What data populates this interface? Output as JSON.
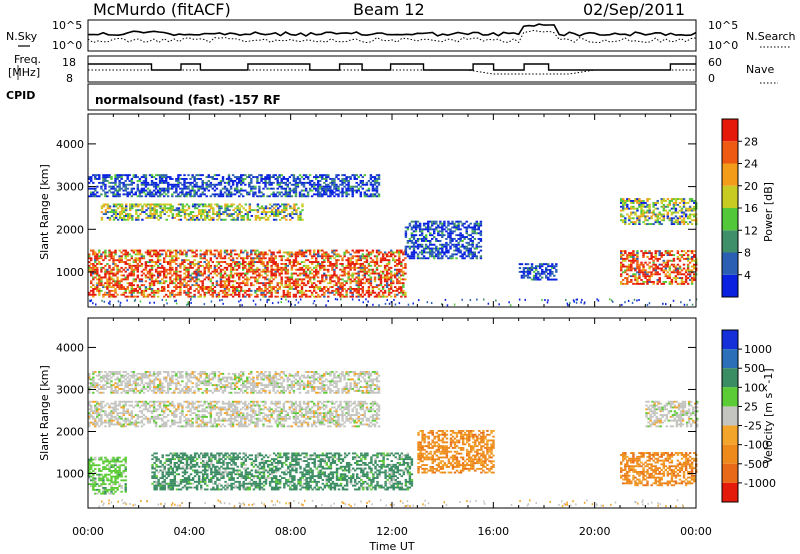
{
  "header": {
    "station": "McMurdo (fitACF)",
    "beam": "Beam 12",
    "date": "02/Sep/2011"
  },
  "noise_panel": {
    "left_label": "N.Sky",
    "right_label": "N.Search",
    "left_ticks": [
      "10^5",
      "10^0"
    ],
    "right_ticks": [
      "10^5",
      "10^0"
    ]
  },
  "freq_panel": {
    "left_label_1": "Freq.",
    "left_label_2": "[MHz]",
    "right_label": "Nave",
    "left_ticks": [
      "18",
      "8"
    ],
    "right_ticks": [
      "60",
      "0"
    ]
  },
  "cpid": {
    "label": "CPID",
    "value": "normalsound (fast) -157 RF"
  },
  "colors": {
    "power_scale": [
      "#0a22e0",
      "#2a5fb4",
      "#3f8f6a",
      "#52c73a",
      "#c8cc22",
      "#f29c1a",
      "#ee5a12",
      "#e61a0a"
    ],
    "velocity_scale": [
      "#1530d8",
      "#2a6fb8",
      "#3a8c63",
      "#5ccc36",
      "#c4c4c0",
      "#f3a42a",
      "#ee8a1c",
      "#e86a18",
      "#e41a0a"
    ]
  },
  "chart_data": [
    {
      "type": "heatmap",
      "title": "Power",
      "ylabel": "Slant Range [km]",
      "xlabel": "",
      "x_ticks": [
        "00:00",
        "04:00",
        "08:00",
        "12:00",
        "16:00",
        "20:00",
        "00:00"
      ],
      "y_ticks": [
        "1000",
        "2000",
        "3000",
        "4000"
      ],
      "ylim": [
        180,
        4700
      ],
      "xlim_hours": [
        0,
        24
      ],
      "colorbar": {
        "label": "Power [dB]",
        "ticks": [
          "4",
          "8",
          "12",
          "16",
          "20",
          "24",
          "28"
        ],
        "range": [
          0,
          32
        ]
      },
      "scatter_bands": [
        {
          "hours": [
            0.0,
            12.5
          ],
          "range_km": [
            400,
            1500
          ],
          "level": "high"
        },
        {
          "hours": [
            0.5,
            8.5
          ],
          "range_km": [
            2200,
            2600
          ],
          "level": "medium"
        },
        {
          "hours": [
            0.0,
            11.5
          ],
          "range_km": [
            2750,
            3250
          ],
          "level": "low"
        },
        {
          "hours": [
            12.5,
            15.5
          ],
          "range_km": [
            1300,
            2200
          ],
          "level": "low"
        },
        {
          "hours": [
            17.0,
            18.5
          ],
          "range_km": [
            800,
            1200
          ],
          "level": "low"
        },
        {
          "hours": [
            21.0,
            24.0
          ],
          "range_km": [
            700,
            1500
          ],
          "level": "high"
        },
        {
          "hours": [
            21.0,
            24.0
          ],
          "range_km": [
            2100,
            2700
          ],
          "level": "medium"
        }
      ]
    },
    {
      "type": "heatmap",
      "title": "Velocity",
      "ylabel": "Slant Range [km]",
      "xlabel": "Time UT",
      "x_ticks": [
        "00:00",
        "04:00",
        "08:00",
        "12:00",
        "16:00",
        "20:00",
        "00:00"
      ],
      "y_ticks": [
        "1000",
        "2000",
        "3000",
        "4000"
      ],
      "ylim": [
        180,
        4700
      ],
      "xlim_hours": [
        0,
        24
      ],
      "colorbar": {
        "label": "Velocity [m s^-1]",
        "ticks": [
          "1000",
          "500",
          "100",
          "25",
          "-25",
          "-100",
          "-500",
          "-1000"
        ]
      },
      "scatter_bands": [
        {
          "hours": [
            0.0,
            1.5
          ],
          "range_km": [
            500,
            1400
          ],
          "level": "positive"
        },
        {
          "hours": [
            2.5,
            12.8
          ],
          "range_km": [
            600,
            1500
          ],
          "level": "moderate-positive"
        },
        {
          "hours": [
            0.0,
            11.5
          ],
          "range_km": [
            2100,
            2700
          ],
          "level": "near-zero"
        },
        {
          "hours": [
            0.0,
            11.5
          ],
          "range_km": [
            2900,
            3400
          ],
          "level": "near-zero"
        },
        {
          "hours": [
            13.0,
            16.0
          ],
          "range_km": [
            1000,
            2000
          ],
          "level": "negative"
        },
        {
          "hours": [
            21.0,
            24.0
          ],
          "range_km": [
            700,
            1500
          ],
          "level": "negative"
        },
        {
          "hours": [
            22.0,
            24.0
          ],
          "range_km": [
            2100,
            2700
          ],
          "level": "near-zero"
        }
      ]
    }
  ]
}
